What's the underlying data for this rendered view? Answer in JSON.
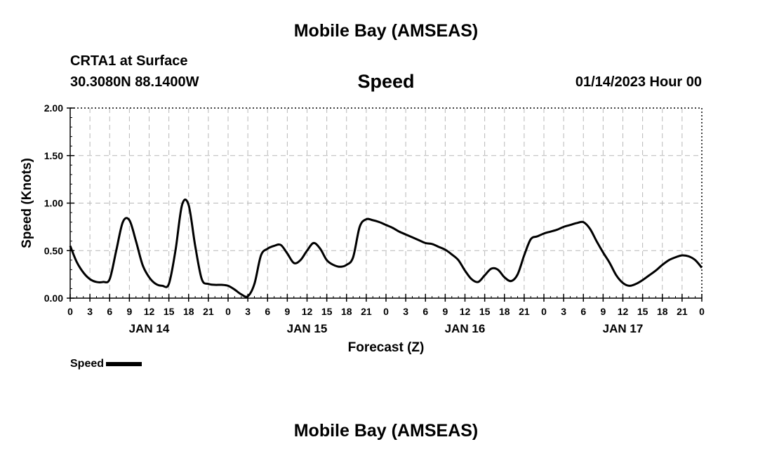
{
  "header": {
    "title": "Mobile Bay (AMSEAS)",
    "station": "CRTA1 at Surface",
    "coords": "30.3080N  88.1400W",
    "variable": "Speed",
    "datetime": "01/14/2023 Hour 00"
  },
  "footer": {
    "title": "Mobile Bay (AMSEAS)"
  },
  "legend": {
    "label": "Speed"
  },
  "chart_data": {
    "type": "line",
    "title": "Speed",
    "xlabel": "Forecast (Z)",
    "ylabel": "Speed (Knots)",
    "xlim": [
      0,
      96
    ],
    "ylim": [
      0,
      2
    ],
    "yticks": [
      "0.00",
      "0.50",
      "1.00",
      "1.50",
      "2.00"
    ],
    "ytick_values": [
      0,
      0.5,
      1.0,
      1.5,
      2.0
    ],
    "xtick_labels": [
      "0",
      "3",
      "6",
      "9",
      "12",
      "15",
      "18",
      "21",
      "0",
      "3",
      "6",
      "9",
      "12",
      "15",
      "18",
      "21",
      "0",
      "3",
      "6",
      "9",
      "12",
      "15",
      "18",
      "21",
      "0",
      "3",
      "6",
      "9",
      "12",
      "15",
      "18",
      "21",
      "0"
    ],
    "day_labels": [
      {
        "label": "JAN 14",
        "at_hour": 12
      },
      {
        "label": "JAN 15",
        "at_hour": 36
      },
      {
        "label": "JAN 16",
        "at_hour": 60
      },
      {
        "label": "JAN 17",
        "at_hour": 84
      }
    ],
    "grid": true,
    "series": [
      {
        "name": "Speed",
        "color": "#000000",
        "x": [
          0,
          1,
          2,
          3,
          4,
          5,
          6,
          7,
          8,
          9,
          10,
          11,
          12,
          13,
          14,
          15,
          16,
          17,
          18,
          19,
          20,
          21,
          22,
          23,
          24,
          25,
          26,
          27,
          28,
          29,
          30,
          31,
          32,
          33,
          34,
          35,
          36,
          37,
          38,
          39,
          40,
          41,
          42,
          43,
          44,
          45,
          46,
          47,
          48,
          49,
          50,
          51,
          52,
          53,
          54,
          55,
          56,
          57,
          58,
          59,
          60,
          61,
          62,
          63,
          64,
          65,
          66,
          67,
          68,
          69,
          70,
          71,
          72,
          73,
          74,
          75,
          76,
          77,
          78,
          79,
          80,
          81,
          82,
          83,
          84,
          85,
          86,
          87,
          88,
          89,
          90,
          91,
          92,
          93,
          94,
          95,
          96
        ],
        "values": [
          0.55,
          0.38,
          0.27,
          0.2,
          0.17,
          0.17,
          0.2,
          0.5,
          0.8,
          0.82,
          0.6,
          0.35,
          0.22,
          0.15,
          0.13,
          0.15,
          0.5,
          0.98,
          0.98,
          0.55,
          0.2,
          0.15,
          0.14,
          0.14,
          0.13,
          0.09,
          0.04,
          0.02,
          0.15,
          0.45,
          0.52,
          0.55,
          0.56,
          0.47,
          0.37,
          0.4,
          0.5,
          0.58,
          0.52,
          0.4,
          0.35,
          0.33,
          0.35,
          0.43,
          0.75,
          0.83,
          0.82,
          0.8,
          0.77,
          0.74,
          0.7,
          0.67,
          0.64,
          0.61,
          0.58,
          0.57,
          0.54,
          0.51,
          0.46,
          0.4,
          0.29,
          0.2,
          0.17,
          0.24,
          0.31,
          0.3,
          0.22,
          0.18,
          0.25,
          0.45,
          0.62,
          0.65,
          0.68,
          0.7,
          0.72,
          0.75,
          0.77,
          0.79,
          0.8,
          0.73,
          0.6,
          0.48,
          0.37,
          0.24,
          0.16,
          0.13,
          0.15,
          0.19,
          0.24,
          0.29,
          0.35,
          0.4,
          0.43,
          0.45,
          0.44,
          0.4,
          0.32
        ]
      }
    ]
  }
}
